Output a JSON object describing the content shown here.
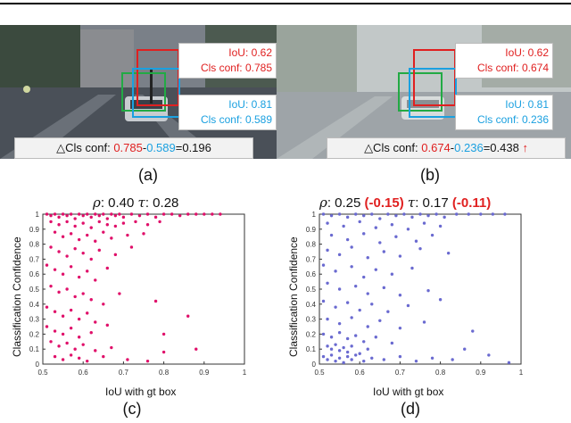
{
  "panel_a": {
    "caption": "(a)",
    "red_box": {
      "iou": "IoU: 0.62",
      "cls": "Cls conf: 0.785"
    },
    "blue_box": {
      "iou": "IoU: 0.81",
      "cls": "Cls conf: 0.589"
    },
    "delta": {
      "prefix": "△Cls conf: ",
      "red": "0.785",
      "dash": "-",
      "blue": "0.589",
      "result": "=0.196"
    }
  },
  "panel_b": {
    "caption": "(b)",
    "red_box": {
      "iou": "IoU: 0.62",
      "cls": "Cls conf: 0.674"
    },
    "blue_box": {
      "iou": "IoU: 0.81",
      "cls": "Cls conf: 0.236"
    },
    "delta": {
      "prefix": "△Cls conf: ",
      "red": "0.674",
      "dash": "-",
      "blue": "0.236",
      "result": "=0.438"
    }
  },
  "panel_c": {
    "caption": "(c)",
    "rho_label": ": 0.40 ",
    "tau_label": ": 0.28"
  },
  "panel_d": {
    "caption": "(d)",
    "rho_label": ": 0.25 ",
    "rho_delta": "(-0.15)",
    "tau_label": ": 0.17 ",
    "tau_delta": "(-0.11)"
  },
  "symbols": {
    "rho": "ρ",
    "tau": "τ"
  },
  "colors": {
    "red": "#e02020",
    "blue": "#1aa0e0",
    "green": "#22aa44",
    "pink": "#e0106a",
    "purple": "#6a6ad0"
  },
  "chart_data": [
    {
      "type": "scatter",
      "title": "",
      "xlabel": "IoU with gt box",
      "ylabel": "Classification Confidence",
      "xlim": [
        0.5,
        1.0
      ],
      "ylim": [
        0,
        1
      ],
      "xticks": [
        "0.5",
        "0.6",
        "0.7",
        "0.8",
        "0.9",
        "1"
      ],
      "yticks": [
        "0",
        "0.1",
        "0.2",
        "0.3",
        "0.4",
        "0.5",
        "0.6",
        "0.7",
        "0.8",
        "0.9",
        "1"
      ],
      "color": "#e0106a",
      "points": [
        [
          0.51,
          1.0
        ],
        [
          0.52,
          0.99
        ],
        [
          0.53,
          1.0
        ],
        [
          0.54,
          0.98
        ],
        [
          0.55,
          1.0
        ],
        [
          0.56,
          0.99
        ],
        [
          0.57,
          1.0
        ],
        [
          0.58,
          0.97
        ],
        [
          0.59,
          1.0
        ],
        [
          0.6,
          0.99
        ],
        [
          0.61,
          1.0
        ],
        [
          0.62,
          0.98
        ],
        [
          0.63,
          1.0
        ],
        [
          0.64,
          0.99
        ],
        [
          0.65,
          1.0
        ],
        [
          0.66,
          0.97
        ],
        [
          0.67,
          1.0
        ],
        [
          0.68,
          0.99
        ],
        [
          0.69,
          1.0
        ],
        [
          0.7,
          0.98
        ],
        [
          0.72,
          1.0
        ],
        [
          0.74,
          0.99
        ],
        [
          0.76,
          1.0
        ],
        [
          0.78,
          0.98
        ],
        [
          0.8,
          1.0
        ],
        [
          0.82,
          1.0
        ],
        [
          0.84,
          0.99
        ],
        [
          0.86,
          1.0
        ],
        [
          0.88,
          1.0
        ],
        [
          0.9,
          1.0
        ],
        [
          0.92,
          1.0
        ],
        [
          0.94,
          1.0
        ],
        [
          0.52,
          0.95
        ],
        [
          0.54,
          0.93
        ],
        [
          0.56,
          0.95
        ],
        [
          0.58,
          0.92
        ],
        [
          0.6,
          0.94
        ],
        [
          0.62,
          0.91
        ],
        [
          0.64,
          0.95
        ],
        [
          0.66,
          0.93
        ],
        [
          0.68,
          0.92
        ],
        [
          0.7,
          0.94
        ],
        [
          0.73,
          0.95
        ],
        [
          0.76,
          0.93
        ],
        [
          0.79,
          0.95
        ],
        [
          0.53,
          0.88
        ],
        [
          0.55,
          0.85
        ],
        [
          0.57,
          0.87
        ],
        [
          0.59,
          0.83
        ],
        [
          0.61,
          0.86
        ],
        [
          0.63,
          0.82
        ],
        [
          0.65,
          0.88
        ],
        [
          0.67,
          0.84
        ],
        [
          0.71,
          0.86
        ],
        [
          0.75,
          0.87
        ],
        [
          0.52,
          0.78
        ],
        [
          0.54,
          0.75
        ],
        [
          0.56,
          0.72
        ],
        [
          0.58,
          0.77
        ],
        [
          0.6,
          0.74
        ],
        [
          0.62,
          0.7
        ],
        [
          0.64,
          0.76
        ],
        [
          0.68,
          0.73
        ],
        [
          0.72,
          0.78
        ],
        [
          0.51,
          0.66
        ],
        [
          0.53,
          0.63
        ],
        [
          0.55,
          0.6
        ],
        [
          0.57,
          0.65
        ],
        [
          0.59,
          0.58
        ],
        [
          0.61,
          0.62
        ],
        [
          0.63,
          0.56
        ],
        [
          0.66,
          0.64
        ],
        [
          0.52,
          0.52
        ],
        [
          0.54,
          0.48
        ],
        [
          0.56,
          0.5
        ],
        [
          0.58,
          0.45
        ],
        [
          0.6,
          0.47
        ],
        [
          0.62,
          0.43
        ],
        [
          0.65,
          0.4
        ],
        [
          0.69,
          0.47
        ],
        [
          0.51,
          0.38
        ],
        [
          0.53,
          0.35
        ],
        [
          0.55,
          0.32
        ],
        [
          0.57,
          0.36
        ],
        [
          0.59,
          0.3
        ],
        [
          0.61,
          0.34
        ],
        [
          0.63,
          0.28
        ],
        [
          0.78,
          0.42
        ],
        [
          0.51,
          0.25
        ],
        [
          0.53,
          0.22
        ],
        [
          0.55,
          0.2
        ],
        [
          0.57,
          0.24
        ],
        [
          0.59,
          0.18
        ],
        [
          0.62,
          0.21
        ],
        [
          0.66,
          0.26
        ],
        [
          0.52,
          0.15
        ],
        [
          0.54,
          0.12
        ],
        [
          0.56,
          0.14
        ],
        [
          0.58,
          0.1
        ],
        [
          0.6,
          0.13
        ],
        [
          0.63,
          0.09
        ],
        [
          0.67,
          0.11
        ],
        [
          0.53,
          0.05
        ],
        [
          0.55,
          0.03
        ],
        [
          0.57,
          0.06
        ],
        [
          0.59,
          0.04
        ],
        [
          0.61,
          0.02
        ],
        [
          0.65,
          0.05
        ],
        [
          0.71,
          0.03
        ],
        [
          0.76,
          0.02
        ],
        [
          0.8,
          0.08
        ],
        [
          0.8,
          0.2
        ],
        [
          0.86,
          0.32
        ],
        [
          0.88,
          0.1
        ]
      ]
    },
    {
      "type": "scatter",
      "title": "",
      "xlabel": "IoU with gt box",
      "ylabel": "Classification Confidence",
      "xlim": [
        0.5,
        1.0
      ],
      "ylim": [
        0,
        1
      ],
      "xticks": [
        "0.5",
        "0.6",
        "0.7",
        "0.8",
        "0.9",
        "1"
      ],
      "yticks": [
        "0",
        "0.1",
        "0.2",
        "0.3",
        "0.4",
        "0.5",
        "0.6",
        "0.7",
        "0.8",
        "0.9",
        "1"
      ],
      "color": "#6a6ad0",
      "points": [
        [
          0.51,
          1.0
        ],
        [
          0.53,
          0.99
        ],
        [
          0.55,
          1.0
        ],
        [
          0.57,
          0.98
        ],
        [
          0.59,
          1.0
        ],
        [
          0.61,
          0.99
        ],
        [
          0.63,
          1.0
        ],
        [
          0.65,
          0.97
        ],
        [
          0.67,
          1.0
        ],
        [
          0.69,
          0.99
        ],
        [
          0.71,
          1.0
        ],
        [
          0.73,
          0.98
        ],
        [
          0.75,
          1.0
        ],
        [
          0.77,
          0.99
        ],
        [
          0.79,
          1.0
        ],
        [
          0.81,
          0.98
        ],
        [
          0.84,
          1.0
        ],
        [
          0.87,
          1.0
        ],
        [
          0.9,
          1.0
        ],
        [
          0.93,
          1.0
        ],
        [
          0.96,
          1.0
        ],
        [
          0.52,
          0.94
        ],
        [
          0.56,
          0.92
        ],
        [
          0.6,
          0.95
        ],
        [
          0.64,
          0.91
        ],
        [
          0.68,
          0.93
        ],
        [
          0.72,
          0.9
        ],
        [
          0.76,
          0.94
        ],
        [
          0.8,
          0.92
        ],
        [
          0.53,
          0.86
        ],
        [
          0.57,
          0.83
        ],
        [
          0.61,
          0.87
        ],
        [
          0.65,
          0.81
        ],
        [
          0.69,
          0.85
        ],
        [
          0.74,
          0.82
        ],
        [
          0.78,
          0.86
        ],
        [
          0.52,
          0.76
        ],
        [
          0.55,
          0.73
        ],
        [
          0.58,
          0.78
        ],
        [
          0.62,
          0.71
        ],
        [
          0.66,
          0.75
        ],
        [
          0.7,
          0.72
        ],
        [
          0.75,
          0.77
        ],
        [
          0.82,
          0.74
        ],
        [
          0.51,
          0.66
        ],
        [
          0.54,
          0.62
        ],
        [
          0.58,
          0.65
        ],
        [
          0.61,
          0.58
        ],
        [
          0.64,
          0.63
        ],
        [
          0.68,
          0.6
        ],
        [
          0.73,
          0.64
        ],
        [
          0.52,
          0.54
        ],
        [
          0.55,
          0.5
        ],
        [
          0.59,
          0.52
        ],
        [
          0.62,
          0.47
        ],
        [
          0.66,
          0.51
        ],
        [
          0.7,
          0.46
        ],
        [
          0.77,
          0.49
        ],
        [
          0.51,
          0.42
        ],
        [
          0.54,
          0.38
        ],
        [
          0.57,
          0.41
        ],
        [
          0.6,
          0.36
        ],
        [
          0.63,
          0.4
        ],
        [
          0.67,
          0.35
        ],
        [
          0.72,
          0.39
        ],
        [
          0.8,
          0.43
        ],
        [
          0.52,
          0.3
        ],
        [
          0.55,
          0.27
        ],
        [
          0.58,
          0.31
        ],
        [
          0.62,
          0.25
        ],
        [
          0.65,
          0.29
        ],
        [
          0.7,
          0.24
        ],
        [
          0.76,
          0.28
        ],
        [
          0.51,
          0.2
        ],
        [
          0.53,
          0.18
        ],
        [
          0.55,
          0.21
        ],
        [
          0.57,
          0.17
        ],
        [
          0.59,
          0.19
        ],
        [
          0.61,
          0.15
        ],
        [
          0.64,
          0.18
        ],
        [
          0.68,
          0.14
        ],
        [
          0.52,
          0.12
        ],
        [
          0.53,
          0.1
        ],
        [
          0.54,
          0.13
        ],
        [
          0.55,
          0.09
        ],
        [
          0.56,
          0.11
        ],
        [
          0.57,
          0.08
        ],
        [
          0.58,
          0.12
        ],
        [
          0.6,
          0.07
        ],
        [
          0.62,
          0.1
        ],
        [
          0.51,
          0.05
        ],
        [
          0.52,
          0.03
        ],
        [
          0.53,
          0.06
        ],
        [
          0.54,
          0.02
        ],
        [
          0.55,
          0.04
        ],
        [
          0.56,
          0.01
        ],
        [
          0.57,
          0.05
        ],
        [
          0.58,
          0.03
        ],
        [
          0.59,
          0.06
        ],
        [
          0.61,
          0.02
        ],
        [
          0.63,
          0.04
        ],
        [
          0.66,
          0.03
        ],
        [
          0.7,
          0.05
        ],
        [
          0.74,
          0.02
        ],
        [
          0.78,
          0.04
        ],
        [
          0.83,
          0.03
        ],
        [
          0.86,
          0.1
        ],
        [
          0.88,
          0.22
        ],
        [
          0.92,
          0.06
        ],
        [
          0.97,
          0.01
        ]
      ]
    }
  ]
}
